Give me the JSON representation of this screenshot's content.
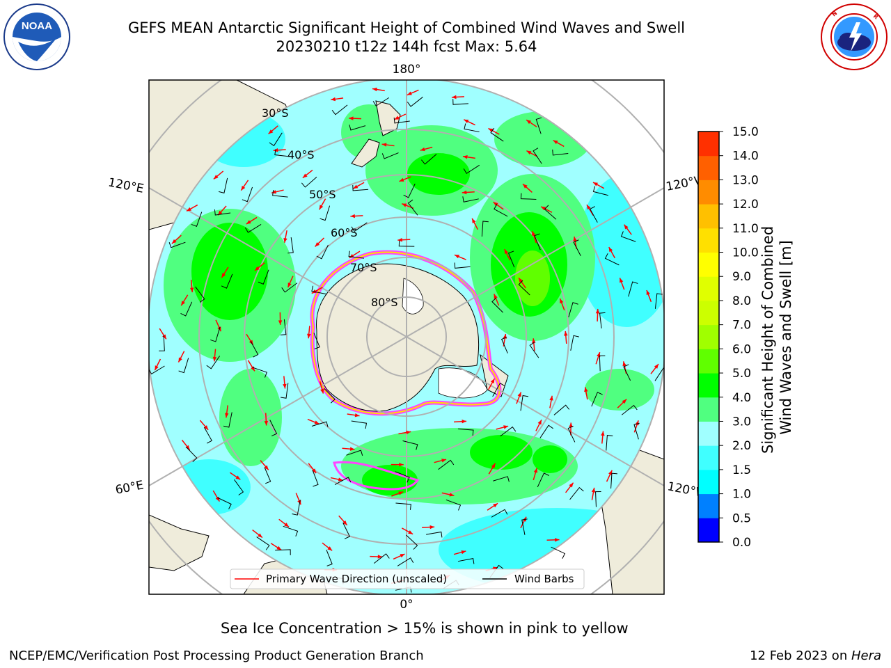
{
  "header": {
    "title_line1": "GEFS MEAN Antarctic Significant Height of Combined Wind Waves and Swell",
    "title_line2": "20230210 t12z 144h fcst   Max: 5.64"
  },
  "logos": {
    "noaa_text": "NOAA",
    "noaa_ring_text": "NATIONAL OCEANIC AND ATMOSPHERIC ADMINISTRATION · U.S. DEPARTMENT OF COMMERCE",
    "nws_ring_text": "NATIONAL WEATHER SERVICE"
  },
  "map": {
    "projection": "south-polar stereographic",
    "longitude_labels": {
      "top": "180°",
      "bottom": "0°",
      "upper_left": "120°E",
      "upper_right": "120°W",
      "lower_left": "60°E",
      "lower_right": "60°W"
    },
    "latitude_labels": [
      "30°S",
      "40°S",
      "50°S",
      "60°S",
      "70°S",
      "80°S"
    ],
    "max_wave_height_m": 5.64
  },
  "legend": {
    "wave_direction_label": "Primary Wave Direction (unscaled)",
    "wind_barbs_label": "Wind Barbs",
    "wave_direction_color": "#ff0000",
    "wind_barbs_color": "#000000"
  },
  "colorbar": {
    "label_line1": "Significant Height of Combined",
    "label_line2": "Wind Waves and Swell [m]",
    "ticks": [
      "0.0",
      "0.5",
      "1.0",
      "1.5",
      "2.0",
      "3.0",
      "4.0",
      "5.0",
      "6.0",
      "7.0",
      "8.0",
      "9.0",
      "10.0",
      "11.0",
      "12.0",
      "13.0",
      "14.0",
      "15.0"
    ],
    "colors": [
      "#0000ff",
      "#0080ff",
      "#00ffff",
      "#40ffff",
      "#a0ffff",
      "#50ff80",
      "#00ff00",
      "#60ff00",
      "#a0ff00",
      "#ccff00",
      "#e0ff00",
      "#ffff00",
      "#ffe000",
      "#ffc000",
      "#ff8c00",
      "#ff6000",
      "#ff3000"
    ]
  },
  "captions": {
    "sea_ice": "Sea Ice Concentration > 15% is shown in pink to yellow",
    "footer_left": "NCEP/EMC/Verification Post Processing Product Generation Branch",
    "footer_right_date": "12 Feb 2023 on ",
    "footer_right_machine": "Hera"
  },
  "palette": {
    "land": "#efecdb",
    "ocean_low": "#a0ffff",
    "ocean_mid": "#50ff80",
    "ocean_high": "#00ff00",
    "ocean_vlow": "#40ffff",
    "grid": "#b0b0b0"
  }
}
